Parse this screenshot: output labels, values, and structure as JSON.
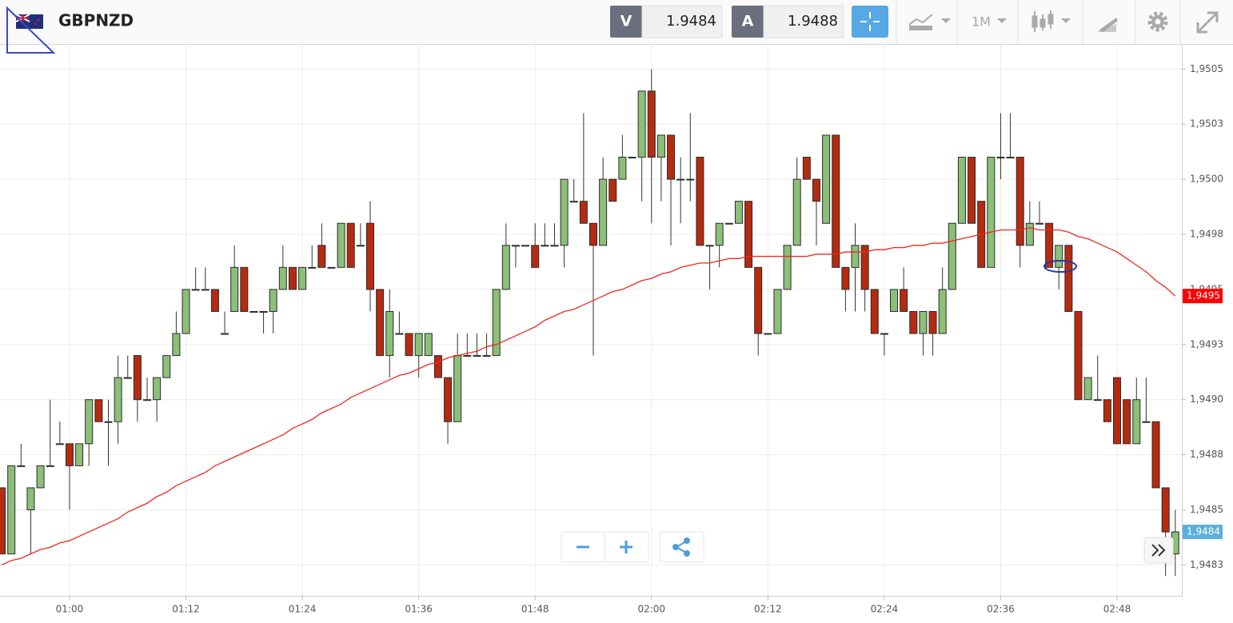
{
  "header": {
    "symbol": "GBPNZD",
    "bid_label": "V",
    "bid_value": 1.9484,
    "ask_label": "A",
    "ask_value": 1.9488,
    "timeframe": "1M"
  },
  "chart_data": {
    "type": "candlestick",
    "categories": [
      null,
      null,
      null,
      null,
      null,
      null,
      null,
      "01:00",
      null,
      null,
      null,
      null,
      null,
      null,
      null,
      null,
      null,
      null,
      null,
      "01:12",
      null,
      null,
      null,
      null,
      null,
      null,
      null,
      null,
      null,
      null,
      null,
      "01:24",
      null,
      null,
      null,
      null,
      null,
      null,
      null,
      null,
      null,
      null,
      null,
      "01:36",
      null,
      null,
      null,
      null,
      null,
      null,
      null,
      null,
      null,
      null,
      null,
      "01:48",
      null,
      null,
      null,
      null,
      null,
      null,
      null,
      null,
      null,
      null,
      null,
      "02:00",
      null,
      null,
      null,
      null,
      null,
      null,
      null,
      null,
      null,
      null,
      null,
      "02:12",
      null,
      null,
      null,
      null,
      null,
      null,
      null,
      null,
      null,
      null,
      null,
      "02:24",
      null,
      null,
      null,
      null,
      null,
      null,
      null,
      null,
      null,
      null,
      null,
      "02:36",
      null,
      null,
      null,
      null,
      null,
      null,
      null,
      null,
      null,
      null,
      null,
      "02:48",
      null,
      null,
      null,
      null,
      null,
      null
    ],
    "open": [
      1.9486,
      1.9483,
      1.9487,
      1.9485,
      1.9486,
      1.9487,
      1.9488,
      1.9488,
      1.9487,
      1.9488,
      1.949,
      1.9489,
      1.9489,
      1.9491,
      1.9492,
      1.949,
      1.949,
      1.9491,
      1.9492,
      1.9493,
      1.9495,
      1.9495,
      1.9495,
      1.9493,
      1.9494,
      1.9496,
      1.9494,
      1.9494,
      1.9494,
      1.9495,
      1.9496,
      1.9495,
      1.9496,
      1.9497,
      1.9496,
      1.9496,
      1.9498,
      1.9497,
      1.9498,
      1.9495,
      1.9492,
      1.9493,
      1.9493,
      1.9492,
      1.9492,
      1.9492,
      1.9491,
      1.9489,
      1.9492,
      1.9492,
      1.9492,
      1.9492,
      1.9495,
      1.9497,
      1.9497,
      1.9497,
      1.9497,
      1.9497,
      1.9497,
      1.9499,
      1.9499,
      1.9498,
      1.9497,
      1.95,
      1.95,
      1.9501,
      1.9501,
      1.9504,
      1.9501,
      1.9502,
      1.95,
      1.95,
      1.9501,
      1.9497,
      1.9497,
      1.9498,
      1.9498,
      1.9499,
      1.9496,
      1.9493,
      1.9493,
      1.9495,
      1.9497,
      1.9501,
      1.95,
      1.9498,
      1.9502,
      1.9496,
      1.9496,
      1.9497,
      1.9495,
      1.9493,
      1.9494,
      1.9495,
      1.9494,
      1.9493,
      1.9494,
      1.9493,
      1.9495,
      1.9498,
      1.9501,
      1.9499,
      1.9496,
      1.9501,
      1.9501,
      1.9501,
      1.9497,
      1.9498,
      1.9498,
      1.9496,
      1.9497,
      1.9494,
      1.949,
      1.949,
      1.949,
      1.9491,
      1.949,
      1.9488,
      1.9489,
      1.9489,
      1.9486,
      1.9483
    ],
    "high": [
      1.9486,
      1.9487,
      1.9488,
      1.9486,
      1.9487,
      1.949,
      1.9489,
      1.9488,
      1.9488,
      1.949,
      1.949,
      1.949,
      1.9492,
      1.9492,
      1.9492,
      1.9491,
      1.9491,
      1.9492,
      1.9494,
      1.9495,
      1.9496,
      1.9496,
      1.9495,
      1.9494,
      1.9497,
      1.9496,
      1.9494,
      1.9494,
      1.9495,
      1.9497,
      1.9496,
      1.9496,
      1.9497,
      1.9498,
      1.9496,
      1.9498,
      1.9498,
      1.9498,
      1.9499,
      1.9495,
      1.9495,
      1.9494,
      1.9493,
      1.9493,
      1.9493,
      1.9492,
      1.9491,
      1.9493,
      1.9493,
      1.9493,
      1.9493,
      1.9495,
      1.9498,
      1.9497,
      1.9497,
      1.9498,
      1.9498,
      1.9498,
      1.95,
      1.95,
      1.9503,
      1.9498,
      1.9501,
      1.95,
      1.9502,
      1.9501,
      1.9504,
      1.9505,
      1.9502,
      1.9502,
      1.9501,
      1.9503,
      1.9501,
      1.9497,
      1.9498,
      1.9498,
      1.9499,
      1.9499,
      1.9496,
      1.9493,
      1.9495,
      1.9497,
      1.9501,
      1.9501,
      1.95,
      1.9502,
      1.9502,
      1.9496,
      1.9498,
      1.9497,
      1.9495,
      1.9493,
      1.9495,
      1.9496,
      1.9494,
      1.9494,
      1.9494,
      1.9496,
      1.9498,
      1.9501,
      1.9501,
      1.9499,
      1.9501,
      1.9503,
      1.9503,
      1.9501,
      1.9499,
      1.9499,
      1.9498,
      1.9497,
      1.9497,
      1.9494,
      1.9491,
      1.9492,
      1.949,
      1.9491,
      1.949,
      1.9491,
      1.9491,
      1.9489,
      1.9486,
      1.9485
    ],
    "low": [
      1.9483,
      1.9483,
      1.9487,
      1.9483,
      1.9486,
      1.9487,
      1.9488,
      1.9485,
      1.9487,
      1.9487,
      1.9489,
      1.9487,
      1.9488,
      1.9491,
      1.9489,
      1.949,
      1.9489,
      1.9491,
      1.9492,
      1.9493,
      1.9495,
      1.9495,
      1.9494,
      1.9493,
      1.9494,
      1.9494,
      1.9494,
      1.9493,
      1.9493,
      1.9495,
      1.9495,
      1.9495,
      1.9496,
      1.9496,
      1.9496,
      1.9496,
      1.9496,
      1.9497,
      1.9494,
      1.9492,
      1.9491,
      1.9493,
      1.9492,
      1.9491,
      1.9492,
      1.9491,
      1.9488,
      1.9489,
      1.9492,
      1.9492,
      1.9492,
      1.9492,
      1.9495,
      1.9496,
      1.9497,
      1.9496,
      1.9497,
      1.9497,
      1.9496,
      1.9499,
      1.9498,
      1.9492,
      1.9497,
      1.9499,
      1.95,
      1.9501,
      1.9499,
      1.9498,
      1.9499,
      1.9497,
      1.9498,
      1.9499,
      1.9497,
      1.9495,
      1.9496,
      1.9498,
      1.9498,
      1.9496,
      1.9492,
      1.9493,
      1.9493,
      1.9495,
      1.9497,
      1.95,
      1.9497,
      1.9498,
      1.9496,
      1.9494,
      1.9494,
      1.9494,
      1.9493,
      1.9492,
      1.9494,
      1.9494,
      1.9493,
      1.9492,
      1.9492,
      1.9493,
      1.9495,
      1.9498,
      1.9498,
      1.9496,
      1.9496,
      1.95,
      1.9501,
      1.9496,
      1.9497,
      1.9498,
      1.9496,
      1.9495,
      1.9494,
      1.949,
      1.949,
      1.949,
      1.9489,
      1.9488,
      1.9488,
      1.9488,
      1.9489,
      1.9486,
      1.9482,
      1.9482
    ],
    "close": [
      1.9483,
      1.9487,
      1.9487,
      1.9486,
      1.9487,
      1.9487,
      1.9488,
      1.9487,
      1.9488,
      1.949,
      1.9489,
      1.9489,
      1.9491,
      1.9491,
      1.949,
      1.949,
      1.9491,
      1.9492,
      1.9493,
      1.9495,
      1.9495,
      1.9495,
      1.9494,
      1.9493,
      1.9496,
      1.9494,
      1.9494,
      1.9494,
      1.9495,
      1.9496,
      1.9495,
      1.9496,
      1.9496,
      1.9496,
      1.9496,
      1.9498,
      1.9496,
      1.9497,
      1.9495,
      1.9492,
      1.9494,
      1.9493,
      1.9492,
      1.9493,
      1.9493,
      1.9491,
      1.9489,
      1.9492,
      1.9492,
      1.9492,
      1.9492,
      1.9495,
      1.9497,
      1.9497,
      1.9497,
      1.9496,
      1.9497,
      1.9497,
      1.95,
      1.9499,
      1.9498,
      1.9497,
      1.95,
      1.9499,
      1.9501,
      1.9501,
      1.9504,
      1.9501,
      1.9502,
      1.95,
      1.95,
      1.95,
      1.9497,
      1.9497,
      1.9498,
      1.9498,
      1.9499,
      1.9496,
      1.9493,
      1.9493,
      1.9495,
      1.9497,
      1.95,
      1.95,
      1.9499,
      1.9502,
      1.9496,
      1.9495,
      1.9497,
      1.9495,
      1.9493,
      1.9493,
      1.9495,
      1.9494,
      1.9493,
      1.9494,
      1.9493,
      1.9495,
      1.9498,
      1.9501,
      1.9498,
      1.9496,
      1.9501,
      1.9501,
      1.9501,
      1.9497,
      1.9498,
      1.9498,
      1.9496,
      1.9497,
      1.9494,
      1.949,
      1.9491,
      1.949,
      1.9489,
      1.9488,
      1.9488,
      1.949,
      1.9489,
      1.9486,
      1.9484,
      1.9484
    ],
    "up_color": "#8cbf78",
    "down_color": "#b52b10",
    "ma": {
      "color": "#f0281e",
      "values": [
        1.94825,
        1.94827,
        1.94828,
        1.9483,
        1.94832,
        1.94833,
        1.94835,
        1.94836,
        1.94838,
        1.9484,
        1.94842,
        1.94844,
        1.94846,
        1.94849,
        1.94851,
        1.94853,
        1.94856,
        1.94858,
        1.94861,
        1.94863,
        1.94865,
        1.94867,
        1.9487,
        1.94872,
        1.94874,
        1.94876,
        1.94878,
        1.9488,
        1.94882,
        1.94884,
        1.94887,
        1.94889,
        1.94891,
        1.94894,
        1.94896,
        1.94898,
        1.94901,
        1.94903,
        1.94905,
        1.94907,
        1.94909,
        1.94911,
        1.94912,
        1.94914,
        1.94916,
        1.94917,
        1.94919,
        1.9492,
        1.94921,
        1.94922,
        1.94924,
        1.94925,
        1.94927,
        1.94929,
        1.94931,
        1.94933,
        1.94936,
        1.94938,
        1.9494,
        1.94941,
        1.94943,
        1.94945,
        1.94947,
        1.94949,
        1.9495,
        1.94952,
        1.94954,
        1.94955,
        1.94957,
        1.94958,
        1.9496,
        1.94961,
        1.94962,
        1.94962,
        1.94963,
        1.94964,
        1.94964,
        1.94965,
        1.94965,
        1.94965,
        1.94965,
        1.94965,
        1.94965,
        1.94965,
        1.94966,
        1.94966,
        1.94966,
        1.94967,
        1.94967,
        1.94967,
        1.94968,
        1.94968,
        1.94969,
        1.94969,
        1.9497,
        1.9497,
        1.94971,
        1.94971,
        1.94972,
        1.94973,
        1.94974,
        1.94975,
        1.94976,
        1.94977,
        1.94977,
        1.94977,
        1.94978,
        1.94977,
        1.94977,
        1.94977,
        1.94976,
        1.94974,
        1.94973,
        1.94971,
        1.94969,
        1.94967,
        1.94964,
        1.94961,
        1.94958,
        1.94954,
        1.94951,
        1.94947
      ]
    },
    "price_markers": [
      {
        "value": 1.94947,
        "label": "1,9495",
        "color": "#ff0000"
      },
      {
        "value": 1.9484,
        "label": "1,9484",
        "color": "#5bafdc"
      }
    ],
    "ylim": [
      1.94811,
      1.95061
    ],
    "yticks": [
      {
        "value": 1.9505,
        "label": "1,9505"
      },
      {
        "value": 1.95025,
        "label": "1,9503"
      },
      {
        "value": 1.95,
        "label": "1,9500"
      },
      {
        "value": 1.94975,
        "label": "1,9498"
      },
      {
        "value": 1.9495,
        "label": "1,9495"
      },
      {
        "value": 1.94925,
        "label": "1,9493"
      },
      {
        "value": 1.949,
        "label": "1,9490"
      },
      {
        "value": 1.94875,
        "label": "1,9488"
      },
      {
        "value": 1.9485,
        "label": "1,9485"
      },
      {
        "value": 1.94825,
        "label": "1,9483"
      }
    ],
    "grid": true
  }
}
